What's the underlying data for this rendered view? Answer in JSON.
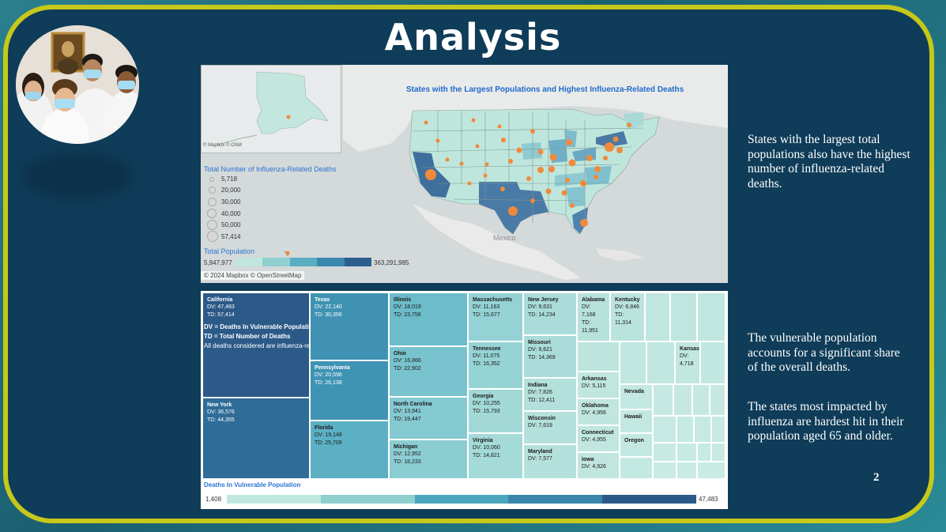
{
  "slide": {
    "title": "Analysis",
    "page_number": "2"
  },
  "side_text": {
    "p1": "States with the largest total populations also have the highest number of influenza-related deaths.",
    "p2": "The vulnerable population accounts for a significant share of the overall deaths.",
    "p3": "The states most impacted by influenza are hardest hit in their population aged 65 and older."
  },
  "map": {
    "title": "States with the Largest Populations and Highest Influenza-Related Deaths",
    "inset_attribution": "© Mapbox © OSM",
    "copyright": "© 2024 Mapbox © OpenStreetMap",
    "country_label": "Mexico",
    "size_legend_title": "Total Number of Influenza-Related Deaths",
    "size_legend": [
      "5,718",
      "20,000",
      "30,000",
      "40,000",
      "50,000",
      "57,414"
    ],
    "color_legend_title": "Total Population",
    "color_min": "5,947,977",
    "color_max": "363,291,985",
    "color_scale": [
      "#bfe7df",
      "#8fcfd0",
      "#5aaec1",
      "#3a88ae",
      "#2c5f8e"
    ]
  },
  "treemap": {
    "note_line1": "DV = Deaths In Vulnerable Population",
    "note_line2": "TD = Total Number of Deaths",
    "note_line3": "All deaths considered are influenza-related.",
    "legend_title": "Deaths In Vulnerable Population",
    "legend_min": "1,408",
    "legend_max": "47,483",
    "legend_scale": [
      "#bfe7df",
      "#8fcfd0",
      "#4ba7bd",
      "#3a86ab",
      "#2c5a88"
    ],
    "cells": [
      {
        "name": "California",
        "dv": "DV: 47,483",
        "td": "TD: 57,414"
      },
      {
        "name": "New York",
        "dv": "DV: 36,576",
        "td": "TD: 44,355"
      },
      {
        "name": "Texas",
        "dv": "DV: 22,140",
        "td": "TD: 30,356"
      },
      {
        "name": "Pennsylvania",
        "dv": "DV: 20,596",
        "td": "TD: 26,138"
      },
      {
        "name": "Florida",
        "dv": "DV: 19,148",
        "td": "TD: 25,709"
      },
      {
        "name": "Illinois",
        "dv": "DV: 18,019",
        "td": "TD: 23,758"
      },
      {
        "name": "Ohio",
        "dv": "DV: 16,866",
        "td": "TD: 22,902"
      },
      {
        "name": "North Carolina",
        "dv": "DV: 13,941",
        "td": "TD: 19,447"
      },
      {
        "name": "Michigan",
        "dv": "DV: 12,952",
        "td": "TD: 18,233"
      },
      {
        "name": "Massachusetts",
        "dv": "DV: 11,163",
        "td": "TD: 15,677"
      },
      {
        "name": "Tennessee",
        "dv": "DV: 11,075",
        "td": "TD: 16,352"
      },
      {
        "name": "Georgia",
        "dv": "DV: 10,255",
        "td": "TD: 15,793"
      },
      {
        "name": "Virginia",
        "dv": "DV: 10,060",
        "td": "TD: 14,821"
      },
      {
        "name": "New Jersey",
        "dv": "DV: 9,631",
        "td": "TD: 14,234"
      },
      {
        "name": "Missouri",
        "dv": "DV: 9,621",
        "td": "TD: 14,369"
      },
      {
        "name": "Indiana",
        "dv": "DV: 7,826",
        "td": "TD: 12,411"
      },
      {
        "name": "Wisconsin",
        "dv": "DV: 7,619",
        "td": ""
      },
      {
        "name": "Maryland",
        "dv": "DV: 7,577",
        "td": ""
      },
      {
        "name": "Alabama",
        "dv": "DV: 7,168",
        "td": "TD: 11,951"
      },
      {
        "name": "Kentucky",
        "dv": "DV: 6,846",
        "td": "TD: 11,314"
      },
      {
        "name": "Arkansas",
        "dv": "DV: 5,115",
        "td": ""
      },
      {
        "name": "Oklahoma",
        "dv": "DV: 4,956",
        "td": ""
      },
      {
        "name": "Connecticut",
        "dv": "DV: 4,955",
        "td": ""
      },
      {
        "name": "Iowa",
        "dv": "DV: 4,926",
        "td": ""
      },
      {
        "name": "Kansas",
        "dv": "DV: 4,718",
        "td": ""
      },
      {
        "name": "Nevada",
        "dv": "",
        "td": ""
      },
      {
        "name": "Hawaii",
        "dv": "",
        "td": ""
      },
      {
        "name": "Oregon",
        "dv": "",
        "td": ""
      }
    ]
  }
}
